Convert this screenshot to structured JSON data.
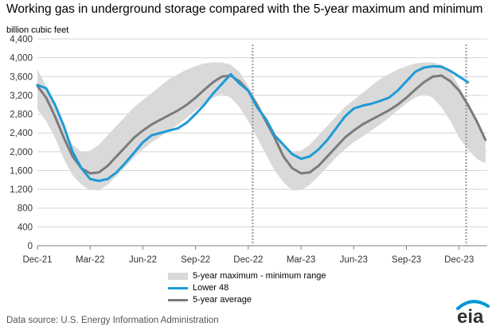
{
  "title": "Working gas in underground storage compared with the 5-year maximum and minimum",
  "source": "Data source: U.S. Energy Information Administration",
  "logo_text": "eia",
  "colors": {
    "band": "#d9d9d9",
    "lower48": "#1d9bd6",
    "avg": "#7b7b7b",
    "grid": "#d4d4d4",
    "divider": "#999999",
    "logo_arc": "#0096d6"
  },
  "chart_data": {
    "type": "line",
    "title": "Working gas in underground storage compared with the 5-year maximum and minimum",
    "ylabel": "billion cubic feet",
    "xlabel": "",
    "ylim": [
      0,
      4400
    ],
    "yticks": [
      0,
      400,
      800,
      1200,
      1600,
      2000,
      2400,
      2800,
      3200,
      3600,
      4000,
      4400
    ],
    "ytick_labels": [
      "0",
      "400",
      "800",
      "1,200",
      "1,600",
      "2,000",
      "2,400",
      "2,800",
      "3,200",
      "3,600",
      "4,000",
      "4,400"
    ],
    "xlim": [
      0,
      25.6
    ],
    "xticks": [
      0,
      3,
      6,
      9,
      12,
      15,
      18,
      21,
      24
    ],
    "xtick_labels": [
      "Dec-21",
      "Mar-22",
      "Jun-22",
      "Sep-22",
      "Dec-22",
      "Mar-23",
      "Jun-23",
      "Sep-23",
      "Dec-23"
    ],
    "x_unit": "months since Dec-21",
    "dividers": [
      12.25,
      24.4
    ],
    "grid": true,
    "legend_position": "bottom",
    "series": [
      {
        "name": "5-year maximum - minimum range",
        "kind": "band",
        "x": [
          0,
          0.5,
          1,
          1.5,
          2,
          2.5,
          3,
          3.5,
          4,
          4.5,
          5,
          5.5,
          6,
          6.5,
          7,
          7.5,
          8,
          8.5,
          9,
          9.5,
          10,
          10.5,
          11,
          11.5,
          12,
          12.5,
          13,
          13.5,
          14,
          14.5,
          15,
          15.5,
          16,
          16.5,
          17,
          17.5,
          18,
          18.5,
          19,
          19.5,
          20,
          20.5,
          21,
          21.5,
          22,
          22.5,
          23,
          23.5,
          24,
          24.5,
          25,
          25.5
        ],
        "max": [
          3750,
          3400,
          2950,
          2500,
          2150,
          2000,
          2020,
          2150,
          2350,
          2550,
          2750,
          2950,
          3100,
          3250,
          3400,
          3550,
          3650,
          3750,
          3820,
          3880,
          3900,
          3900,
          3850,
          3700,
          3400,
          3050,
          2700,
          2400,
          2150,
          2000,
          2020,
          2150,
          2350,
          2550,
          2750,
          2950,
          3100,
          3250,
          3400,
          3550,
          3650,
          3750,
          3820,
          3880,
          3900,
          3900,
          3850,
          3700,
          3400,
          3050,
          2700,
          2300
        ],
        "min": [
          2900,
          2650,
          2300,
          1850,
          1500,
          1300,
          1180,
          1180,
          1300,
          1480,
          1680,
          1880,
          2050,
          2200,
          2320,
          2450,
          2580,
          2720,
          2880,
          3030,
          3150,
          3230,
          3150,
          2950,
          2650,
          2300,
          1950,
          1600,
          1350,
          1180,
          1180,
          1300,
          1480,
          1680,
          1880,
          2050,
          2200,
          2320,
          2450,
          2580,
          2720,
          2880,
          3030,
          3150,
          3230,
          3150,
          2950,
          2650,
          2300,
          2050,
          1850,
          1750
        ]
      },
      {
        "name": "Lower 48",
        "kind": "line",
        "x": [
          0,
          0.5,
          1,
          1.5,
          2,
          2.5,
          3,
          3.5,
          4,
          4.5,
          5,
          5.5,
          6,
          6.5,
          7,
          7.5,
          8,
          8.5,
          9,
          9.5,
          10,
          10.5,
          11,
          11.5,
          12,
          12.5,
          13,
          13.5,
          14,
          14.5,
          15,
          15.5,
          16,
          16.5,
          17,
          17.5,
          18,
          18.5,
          19,
          19.5,
          20,
          20.5,
          21,
          21.5,
          22,
          22.5,
          23,
          23.5,
          24,
          24.5
        ],
        "values": [
          3420,
          3350,
          3000,
          2550,
          2000,
          1650,
          1420,
          1380,
          1420,
          1560,
          1760,
          1980,
          2200,
          2350,
          2400,
          2450,
          2500,
          2620,
          2800,
          3000,
          3240,
          3440,
          3650,
          3450,
          3300,
          2950,
          2700,
          2350,
          2150,
          1950,
          1850,
          1900,
          2050,
          2250,
          2500,
          2750,
          2920,
          2980,
          3020,
          3080,
          3150,
          3300,
          3500,
          3700,
          3790,
          3820,
          3810,
          3720,
          3600,
          3480
        ]
      },
      {
        "name": "5-year average",
        "kind": "line",
        "x": [
          0,
          0.5,
          1,
          1.5,
          2,
          2.5,
          3,
          3.5,
          4,
          4.5,
          5,
          5.5,
          6,
          6.5,
          7,
          7.5,
          8,
          8.5,
          9,
          9.5,
          10,
          10.5,
          11,
          11.5,
          12,
          12.5,
          13,
          13.5,
          14,
          14.5,
          15,
          15.5,
          16,
          16.5,
          17,
          17.5,
          18,
          18.5,
          19,
          19.5,
          20,
          20.5,
          21,
          21.5,
          22,
          22.5,
          23,
          23.5,
          24,
          24.5,
          25,
          25.5
        ],
        "values": [
          3400,
          3150,
          2750,
          2300,
          1900,
          1650,
          1540,
          1560,
          1700,
          1900,
          2100,
          2300,
          2450,
          2580,
          2680,
          2780,
          2880,
          3000,
          3150,
          3320,
          3480,
          3600,
          3620,
          3500,
          3300,
          3000,
          2650,
          2300,
          1900,
          1650,
          1540,
          1560,
          1700,
          1900,
          2100,
          2300,
          2450,
          2580,
          2680,
          2780,
          2880,
          3000,
          3150,
          3320,
          3480,
          3600,
          3620,
          3500,
          3300,
          3000,
          2650,
          2250
        ]
      }
    ]
  }
}
